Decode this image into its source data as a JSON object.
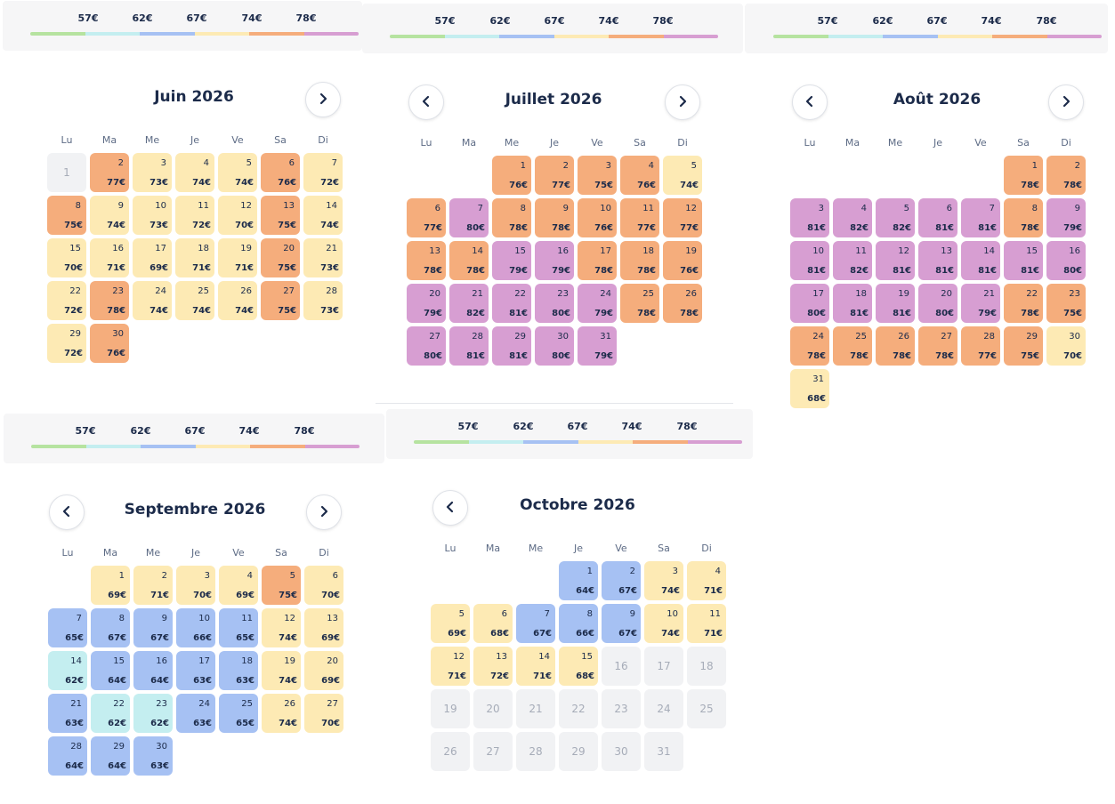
{
  "price_tiers": [
    "57€",
    "62€",
    "67€",
    "74€",
    "78€"
  ],
  "tier_colors": [
    "#b6e3a0",
    "#c4eef0",
    "#a6c1f3",
    "#fdeab4",
    "#f5ad7c",
    "#d79ed2"
  ],
  "weekdays": [
    "Lu",
    "Ma",
    "Me",
    "Je",
    "Ve",
    "Sa",
    "Di"
  ],
  "months": [
    {
      "title": "Juin 2026",
      "start_offset": 0,
      "has_prev": false,
      "has_next": true,
      "days": [
        {
          "n": "1",
          "p": "",
          "t": "na"
        },
        {
          "n": "2",
          "p": "77€",
          "t": "o"
        },
        {
          "n": "3",
          "p": "73€",
          "t": "y"
        },
        {
          "n": "4",
          "p": "74€",
          "t": "y"
        },
        {
          "n": "5",
          "p": "74€",
          "t": "y"
        },
        {
          "n": "6",
          "p": "76€",
          "t": "o"
        },
        {
          "n": "7",
          "p": "72€",
          "t": "y"
        },
        {
          "n": "8",
          "p": "75€",
          "t": "o"
        },
        {
          "n": "9",
          "p": "74€",
          "t": "y"
        },
        {
          "n": "10",
          "p": "73€",
          "t": "y"
        },
        {
          "n": "11",
          "p": "72€",
          "t": "y"
        },
        {
          "n": "12",
          "p": "70€",
          "t": "y"
        },
        {
          "n": "13",
          "p": "75€",
          "t": "o"
        },
        {
          "n": "14",
          "p": "74€",
          "t": "y"
        },
        {
          "n": "15",
          "p": "70€",
          "t": "y"
        },
        {
          "n": "16",
          "p": "71€",
          "t": "y"
        },
        {
          "n": "17",
          "p": "69€",
          "t": "y"
        },
        {
          "n": "18",
          "p": "71€",
          "t": "y"
        },
        {
          "n": "19",
          "p": "71€",
          "t": "y"
        },
        {
          "n": "20",
          "p": "75€",
          "t": "o"
        },
        {
          "n": "21",
          "p": "73€",
          "t": "y"
        },
        {
          "n": "22",
          "p": "72€",
          "t": "y"
        },
        {
          "n": "23",
          "p": "78€",
          "t": "o"
        },
        {
          "n": "24",
          "p": "74€",
          "t": "y"
        },
        {
          "n": "25",
          "p": "74€",
          "t": "y"
        },
        {
          "n": "26",
          "p": "74€",
          "t": "y"
        },
        {
          "n": "27",
          "p": "75€",
          "t": "o"
        },
        {
          "n": "28",
          "p": "73€",
          "t": "y"
        },
        {
          "n": "29",
          "p": "72€",
          "t": "y"
        },
        {
          "n": "30",
          "p": "76€",
          "t": "o"
        }
      ]
    },
    {
      "title": "Juillet 2026",
      "start_offset": 2,
      "has_prev": true,
      "has_next": true,
      "days": [
        {
          "n": "1",
          "p": "76€",
          "t": "o"
        },
        {
          "n": "2",
          "p": "77€",
          "t": "o"
        },
        {
          "n": "3",
          "p": "75€",
          "t": "o"
        },
        {
          "n": "4",
          "p": "76€",
          "t": "o"
        },
        {
          "n": "5",
          "p": "74€",
          "t": "y"
        },
        {
          "n": "6",
          "p": "77€",
          "t": "o"
        },
        {
          "n": "7",
          "p": "80€",
          "t": "p"
        },
        {
          "n": "8",
          "p": "78€",
          "t": "o"
        },
        {
          "n": "9",
          "p": "78€",
          "t": "o"
        },
        {
          "n": "10",
          "p": "76€",
          "t": "o"
        },
        {
          "n": "11",
          "p": "77€",
          "t": "o"
        },
        {
          "n": "12",
          "p": "77€",
          "t": "o"
        },
        {
          "n": "13",
          "p": "78€",
          "t": "o"
        },
        {
          "n": "14",
          "p": "78€",
          "t": "o"
        },
        {
          "n": "15",
          "p": "79€",
          "t": "p"
        },
        {
          "n": "16",
          "p": "79€",
          "t": "p"
        },
        {
          "n": "17",
          "p": "78€",
          "t": "o"
        },
        {
          "n": "18",
          "p": "78€",
          "t": "o"
        },
        {
          "n": "19",
          "p": "76€",
          "t": "o"
        },
        {
          "n": "20",
          "p": "79€",
          "t": "p"
        },
        {
          "n": "21",
          "p": "82€",
          "t": "p"
        },
        {
          "n": "22",
          "p": "81€",
          "t": "p"
        },
        {
          "n": "23",
          "p": "80€",
          "t": "p"
        },
        {
          "n": "24",
          "p": "79€",
          "t": "p"
        },
        {
          "n": "25",
          "p": "78€",
          "t": "o"
        },
        {
          "n": "26",
          "p": "78€",
          "t": "o"
        },
        {
          "n": "27",
          "p": "80€",
          "t": "p"
        },
        {
          "n": "28",
          "p": "81€",
          "t": "p"
        },
        {
          "n": "29",
          "p": "81€",
          "t": "p"
        },
        {
          "n": "30",
          "p": "80€",
          "t": "p"
        },
        {
          "n": "31",
          "p": "79€",
          "t": "p"
        }
      ]
    },
    {
      "title": "Août 2026",
      "start_offset": 5,
      "has_prev": true,
      "has_next": true,
      "days": [
        {
          "n": "1",
          "p": "78€",
          "t": "o"
        },
        {
          "n": "2",
          "p": "78€",
          "t": "o"
        },
        {
          "n": "3",
          "p": "81€",
          "t": "p"
        },
        {
          "n": "4",
          "p": "82€",
          "t": "p"
        },
        {
          "n": "5",
          "p": "82€",
          "t": "p"
        },
        {
          "n": "6",
          "p": "81€",
          "t": "p"
        },
        {
          "n": "7",
          "p": "81€",
          "t": "p"
        },
        {
          "n": "8",
          "p": "78€",
          "t": "o"
        },
        {
          "n": "9",
          "p": "79€",
          "t": "p"
        },
        {
          "n": "10",
          "p": "81€",
          "t": "p"
        },
        {
          "n": "11",
          "p": "82€",
          "t": "p"
        },
        {
          "n": "12",
          "p": "81€",
          "t": "p"
        },
        {
          "n": "13",
          "p": "81€",
          "t": "p"
        },
        {
          "n": "14",
          "p": "81€",
          "t": "p"
        },
        {
          "n": "15",
          "p": "81€",
          "t": "p"
        },
        {
          "n": "16",
          "p": "80€",
          "t": "p"
        },
        {
          "n": "17",
          "p": "80€",
          "t": "p"
        },
        {
          "n": "18",
          "p": "81€",
          "t": "p"
        },
        {
          "n": "19",
          "p": "81€",
          "t": "p"
        },
        {
          "n": "20",
          "p": "80€",
          "t": "p"
        },
        {
          "n": "21",
          "p": "79€",
          "t": "p"
        },
        {
          "n": "22",
          "p": "78€",
          "t": "o"
        },
        {
          "n": "23",
          "p": "75€",
          "t": "o"
        },
        {
          "n": "24",
          "p": "78€",
          "t": "o"
        },
        {
          "n": "25",
          "p": "78€",
          "t": "o"
        },
        {
          "n": "26",
          "p": "78€",
          "t": "o"
        },
        {
          "n": "27",
          "p": "78€",
          "t": "o"
        },
        {
          "n": "28",
          "p": "77€",
          "t": "o"
        },
        {
          "n": "29",
          "p": "75€",
          "t": "o"
        },
        {
          "n": "30",
          "p": "70€",
          "t": "y"
        },
        {
          "n": "31",
          "p": "68€",
          "t": "y"
        }
      ]
    },
    {
      "title": "Septembre 2026",
      "start_offset": 1,
      "has_prev": true,
      "has_next": true,
      "days": [
        {
          "n": "1",
          "p": "69€",
          "t": "y"
        },
        {
          "n": "2",
          "p": "71€",
          "t": "y"
        },
        {
          "n": "3",
          "p": "70€",
          "t": "y"
        },
        {
          "n": "4",
          "p": "69€",
          "t": "y"
        },
        {
          "n": "5",
          "p": "75€",
          "t": "o"
        },
        {
          "n": "6",
          "p": "70€",
          "t": "y"
        },
        {
          "n": "7",
          "p": "65€",
          "t": "b"
        },
        {
          "n": "8",
          "p": "67€",
          "t": "b"
        },
        {
          "n": "9",
          "p": "67€",
          "t": "b"
        },
        {
          "n": "10",
          "p": "66€",
          "t": "b"
        },
        {
          "n": "11",
          "p": "65€",
          "t": "b"
        },
        {
          "n": "12",
          "p": "74€",
          "t": "y"
        },
        {
          "n": "13",
          "p": "69€",
          "t": "y"
        },
        {
          "n": "14",
          "p": "62€",
          "t": "c"
        },
        {
          "n": "15",
          "p": "64€",
          "t": "b"
        },
        {
          "n": "16",
          "p": "64€",
          "t": "b"
        },
        {
          "n": "17",
          "p": "63€",
          "t": "b"
        },
        {
          "n": "18",
          "p": "63€",
          "t": "b"
        },
        {
          "n": "19",
          "p": "74€",
          "t": "y"
        },
        {
          "n": "20",
          "p": "69€",
          "t": "y"
        },
        {
          "n": "21",
          "p": "63€",
          "t": "b"
        },
        {
          "n": "22",
          "p": "62€",
          "t": "c"
        },
        {
          "n": "23",
          "p": "62€",
          "t": "c"
        },
        {
          "n": "24",
          "p": "63€",
          "t": "b"
        },
        {
          "n": "25",
          "p": "65€",
          "t": "b"
        },
        {
          "n": "26",
          "p": "74€",
          "t": "y"
        },
        {
          "n": "27",
          "p": "70€",
          "t": "y"
        },
        {
          "n": "28",
          "p": "64€",
          "t": "b"
        },
        {
          "n": "29",
          "p": "64€",
          "t": "b"
        },
        {
          "n": "30",
          "p": "63€",
          "t": "b"
        }
      ]
    },
    {
      "title": "Octobre 2026",
      "start_offset": 3,
      "has_prev": true,
      "has_next": false,
      "days": [
        {
          "n": "1",
          "p": "64€",
          "t": "b"
        },
        {
          "n": "2",
          "p": "67€",
          "t": "b"
        },
        {
          "n": "3",
          "p": "74€",
          "t": "y"
        },
        {
          "n": "4",
          "p": "71€",
          "t": "y"
        },
        {
          "n": "5",
          "p": "69€",
          "t": "y"
        },
        {
          "n": "6",
          "p": "68€",
          "t": "y"
        },
        {
          "n": "7",
          "p": "67€",
          "t": "b"
        },
        {
          "n": "8",
          "p": "66€",
          "t": "b"
        },
        {
          "n": "9",
          "p": "67€",
          "t": "b"
        },
        {
          "n": "10",
          "p": "74€",
          "t": "y"
        },
        {
          "n": "11",
          "p": "71€",
          "t": "y"
        },
        {
          "n": "12",
          "p": "71€",
          "t": "y"
        },
        {
          "n": "13",
          "p": "72€",
          "t": "y"
        },
        {
          "n": "14",
          "p": "71€",
          "t": "y"
        },
        {
          "n": "15",
          "p": "68€",
          "t": "y"
        },
        {
          "n": "16",
          "p": "",
          "t": "na"
        },
        {
          "n": "17",
          "p": "",
          "t": "na"
        },
        {
          "n": "18",
          "p": "",
          "t": "na"
        },
        {
          "n": "19",
          "p": "",
          "t": "na"
        },
        {
          "n": "20",
          "p": "",
          "t": "na"
        },
        {
          "n": "21",
          "p": "",
          "t": "na"
        },
        {
          "n": "22",
          "p": "",
          "t": "na"
        },
        {
          "n": "23",
          "p": "",
          "t": "na"
        },
        {
          "n": "24",
          "p": "",
          "t": "na"
        },
        {
          "n": "25",
          "p": "",
          "t": "na"
        },
        {
          "n": "26",
          "p": "",
          "t": "na"
        },
        {
          "n": "27",
          "p": "",
          "t": "na"
        },
        {
          "n": "28",
          "p": "",
          "t": "na"
        },
        {
          "n": "29",
          "p": "",
          "t": "na"
        },
        {
          "n": "30",
          "p": "",
          "t": "na"
        },
        {
          "n": "31",
          "p": "",
          "t": "na"
        }
      ]
    }
  ],
  "day_colors": {
    "y": "#fdeab4",
    "o": "#f5ad7c",
    "p": "#d79ed2",
    "b": "#a6c1f3",
    "c": "#c4eef0",
    "na": "#f1f2f4"
  }
}
